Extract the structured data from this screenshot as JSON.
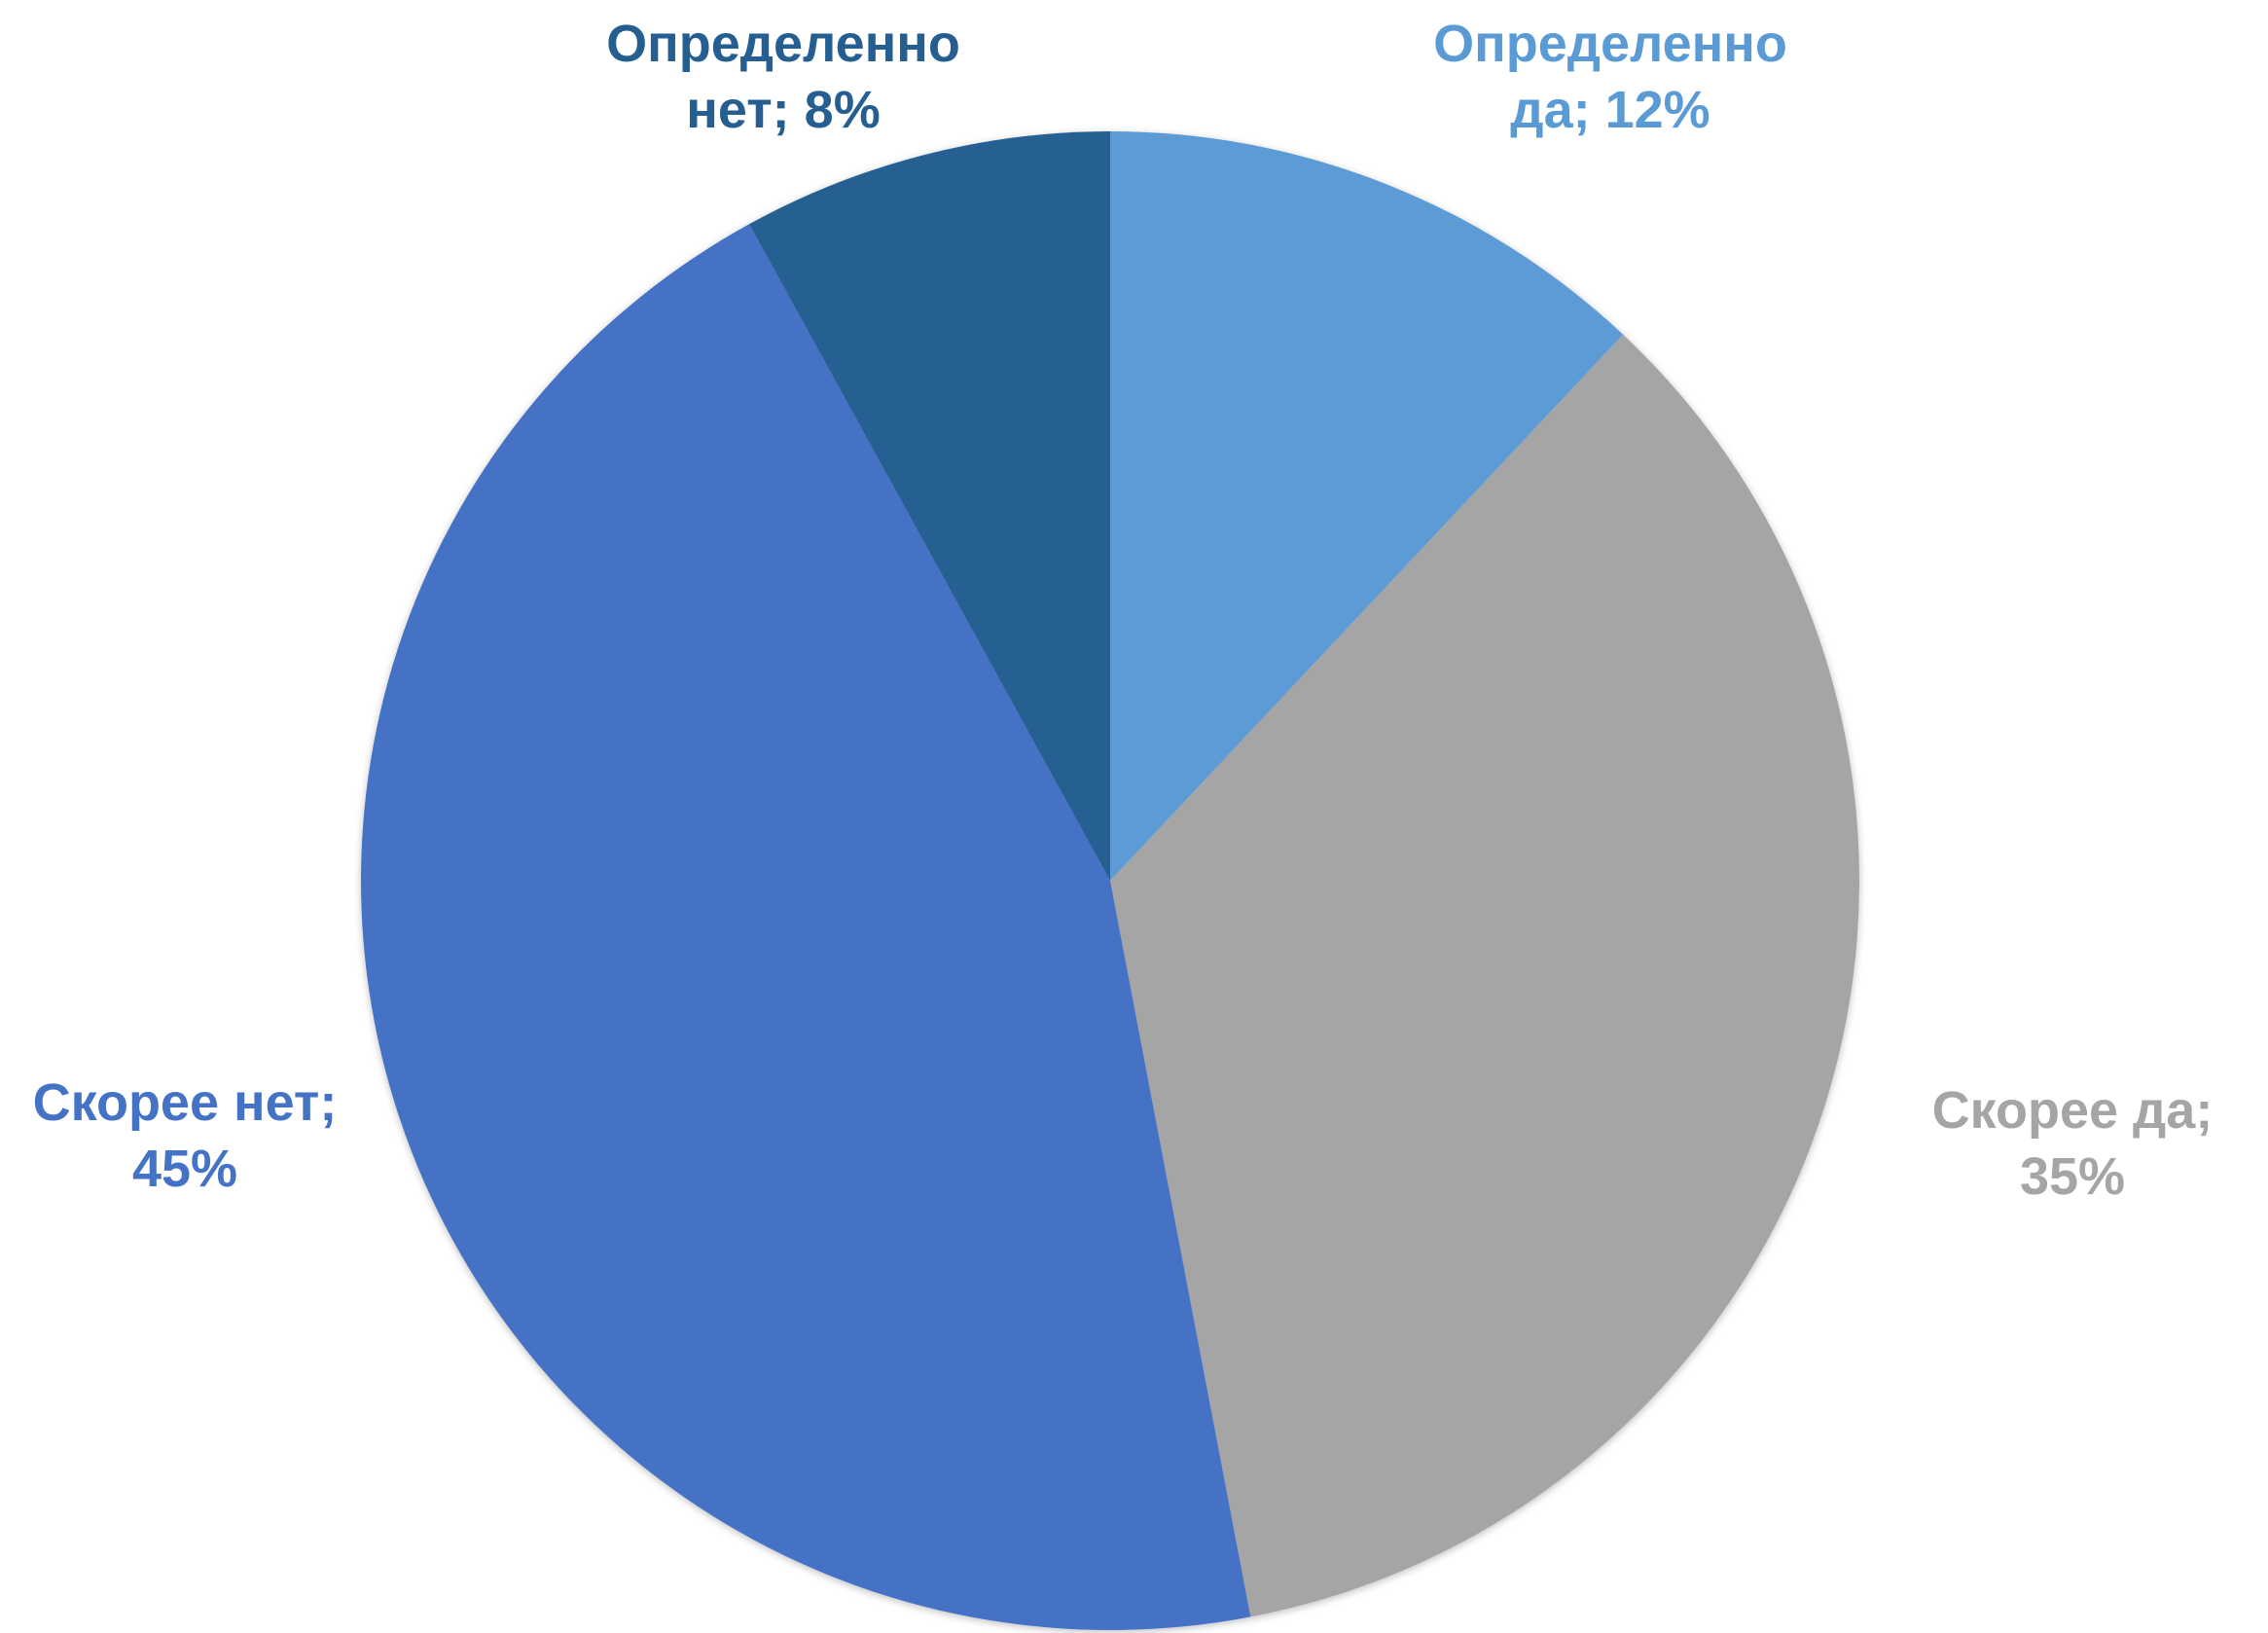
{
  "chart_data": {
    "type": "pie",
    "categories": [
      "Определенно да",
      "Скорее да",
      "Скорее нет",
      "Определенно нет"
    ],
    "values": [
      12,
      35,
      45,
      8
    ],
    "value_labels": [
      "12%",
      "35%",
      "45%",
      "8%"
    ],
    "label_separator": "; ",
    "colors": [
      "#5b9bd5",
      "#a5a5a5",
      "#4472c4",
      "#255e91"
    ]
  }
}
